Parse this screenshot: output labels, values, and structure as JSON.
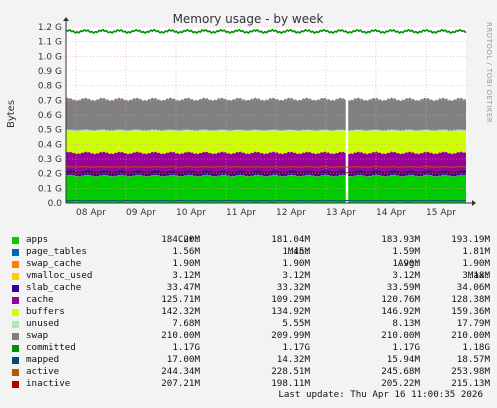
{
  "chart_data": {
    "type": "area",
    "title": "Memory usage - by week",
    "ylabel": "Bytes",
    "ylim": [
      0,
      1.2
    ],
    "yunit": "G",
    "yticks": [
      0,
      0.1,
      0.2,
      0.3,
      0.4,
      0.5,
      0.6,
      0.7,
      0.8,
      0.9,
      1.0,
      1.1,
      1.2
    ],
    "ytick_labels": [
      "0.0",
      "0.1 G",
      "0.2 G",
      "0.3 G",
      "0.4 G",
      "0.5 G",
      "0.6 G",
      "0.7 G",
      "0.8 G",
      "0.9 G",
      "1.0 G",
      "1.1 G",
      "1.2 G"
    ],
    "x_labels": [
      "08 Apr",
      "09 Apr",
      "10 Apr",
      "11 Apr",
      "12 Apr",
      "13 Apr",
      "14 Apr",
      "15 Apr"
    ],
    "watermark": "RRDTOOL / TOBI OETIKER",
    "stack_order": [
      "apps",
      "page_tables",
      "swap_cache",
      "slab_cache",
      "cache",
      "buffers",
      "unused",
      "swap"
    ],
    "stacked_layers_avg_G": {
      "apps": 0.184,
      "page_tables": 0.0016,
      "swap_cache": 0.0019,
      "slab_cache": 0.0336,
      "cache": 0.121,
      "buffers": 0.147,
      "unused": 0.0081,
      "swap": 0.21
    },
    "lines_avg_G": {
      "committed": 1.17,
      "mapped": 0.0159,
      "active": 0.246,
      "inactive": 0.205
    },
    "gap_label": "13 Apr",
    "columns": [
      "Cur:",
      "Min:",
      "Avg:",
      "Max:"
    ],
    "series": [
      {
        "name": "apps",
        "color": "#00cc00",
        "cur": "184.20M",
        "min": "181.04M",
        "avg": "183.93M",
        "max": "193.19M"
      },
      {
        "name": "page_tables",
        "color": "#0066b3",
        "cur": "1.56M",
        "min": "1.45M",
        "avg": "1.59M",
        "max": "1.81M"
      },
      {
        "name": "swap_cache",
        "color": "#ff8000",
        "cur": "1.90M",
        "min": "1.90M",
        "avg": "1.90M",
        "max": "1.90M"
      },
      {
        "name": "vmalloc_used",
        "color": "#ffcc00",
        "cur": "3.12M",
        "min": "3.12M",
        "avg": "3.12M",
        "max": "3.18M"
      },
      {
        "name": "slab_cache",
        "color": "#330099",
        "cur": "33.47M",
        "min": "33.32M",
        "avg": "33.59M",
        "max": "34.06M"
      },
      {
        "name": "cache",
        "color": "#990099",
        "cur": "125.71M",
        "min": "109.29M",
        "avg": "120.76M",
        "max": "128.38M"
      },
      {
        "name": "buffers",
        "color": "#ccff00",
        "cur": "142.32M",
        "min": "134.92M",
        "avg": "146.92M",
        "max": "159.36M"
      },
      {
        "name": "unused",
        "color": "#b3e6b3",
        "cur": "7.68M",
        "min": "5.55M",
        "avg": "8.13M",
        "max": "17.79M"
      },
      {
        "name": "swap",
        "color": "#808080",
        "cur": "210.00M",
        "min": "209.99M",
        "avg": "210.00M",
        "max": "210.00M"
      },
      {
        "name": "committed",
        "color": "#008f00",
        "cur": "1.17G",
        "min": "1.17G",
        "avg": "1.17G",
        "max": "1.18G"
      },
      {
        "name": "mapped",
        "color": "#00487d",
        "cur": "17.00M",
        "min": "14.32M",
        "avg": "15.94M",
        "max": "18.57M"
      },
      {
        "name": "active",
        "color": "#b35a00",
        "cur": "244.34M",
        "min": "228.51M",
        "avg": "245.68M",
        "max": "253.98M"
      },
      {
        "name": "inactive",
        "color": "#b30000",
        "cur": "207.21M",
        "min": "198.11M",
        "avg": "205.22M",
        "max": "215.13M"
      }
    ],
    "last_update": "Last update: Thu Apr 16 11:00:35 2026"
  }
}
